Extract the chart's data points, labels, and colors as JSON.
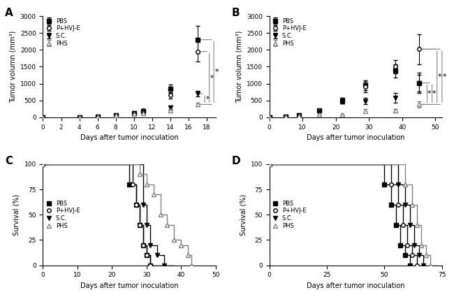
{
  "panel_A": {
    "title": "A",
    "xlabel": "Days after tumor inoculation",
    "ylabel": "Tumor volumn (mm³)",
    "xlim": [
      0,
      19
    ],
    "ylim": [
      0,
      3000
    ],
    "xticks": [
      0,
      2,
      4,
      6,
      8,
      10,
      12,
      14,
      16,
      18
    ],
    "yticks": [
      0,
      500,
      1000,
      1500,
      2000,
      2500,
      3000
    ],
    "series": {
      "PBS": {
        "x": [
          0,
          4,
          6,
          8,
          10,
          11,
          14,
          17
        ],
        "y": [
          0,
          5,
          8,
          50,
          120,
          190,
          850,
          2300
        ],
        "yerr": [
          0,
          2,
          3,
          10,
          30,
          40,
          120,
          400
        ],
        "marker": "s",
        "fillstyle": "full",
        "color": "black"
      },
      "P+HVJ-E": {
        "x": [
          0,
          4,
          6,
          8,
          10,
          11,
          14,
          17
        ],
        "y": [
          0,
          5,
          8,
          50,
          100,
          200,
          650,
          1950
        ],
        "yerr": [
          0,
          2,
          3,
          10,
          25,
          50,
          100,
          300
        ],
        "marker": "o",
        "fillstyle": "none",
        "color": "black"
      },
      "S.C.": {
        "x": [
          0,
          4,
          6,
          8,
          10,
          11,
          14,
          17
        ],
        "y": [
          0,
          5,
          8,
          50,
          110,
          160,
          280,
          700
        ],
        "yerr": [
          0,
          2,
          3,
          10,
          20,
          30,
          60,
          80
        ],
        "marker": "v",
        "fillstyle": "full",
        "color": "black"
      },
      "PHS": {
        "x": [
          0,
          4,
          6,
          8,
          10,
          11,
          14,
          17
        ],
        "y": [
          0,
          5,
          8,
          50,
          90,
          130,
          200,
          380
        ],
        "yerr": [
          0,
          2,
          3,
          10,
          15,
          25,
          40,
          60
        ],
        "marker": "^",
        "fillstyle": "none",
        "color": "gray"
      }
    }
  },
  "panel_B": {
    "title": "B",
    "xlabel": "Days after tumor inoculation",
    "ylabel": "Tumor volumn (mm³)",
    "xlim": [
      0,
      52
    ],
    "ylim": [
      0,
      3000
    ],
    "xticks": [
      0,
      10,
      20,
      30,
      40,
      50
    ],
    "yticks": [
      0,
      500,
      1000,
      1500,
      2000,
      2500,
      3000
    ],
    "series": {
      "PBS": {
        "x": [
          0,
          5,
          9,
          15,
          22,
          29,
          38,
          45
        ],
        "y": [
          0,
          10,
          60,
          200,
          500,
          950,
          1380,
          1020
        ],
        "yerr": [
          0,
          5,
          15,
          40,
          80,
          150,
          200,
          300
        ],
        "marker": "s",
        "fillstyle": "full",
        "color": "black"
      },
      "P+HVJ-E": {
        "x": [
          0,
          5,
          9,
          15,
          22,
          29,
          38,
          45
        ],
        "y": [
          0,
          10,
          60,
          200,
          500,
          900,
          1500,
          2020
        ],
        "yerr": [
          0,
          5,
          15,
          40,
          80,
          150,
          200,
          450
        ],
        "marker": "o",
        "fillstyle": "none",
        "color": "black"
      },
      "S.C.": {
        "x": [
          0,
          5,
          9,
          15,
          22,
          29,
          38,
          45
        ],
        "y": [
          0,
          10,
          55,
          170,
          480,
          480,
          580,
          1020
        ],
        "yerr": [
          0,
          5,
          12,
          35,
          70,
          100,
          150,
          250
        ],
        "marker": "v",
        "fillstyle": "full",
        "color": "black"
      },
      "PHS": {
        "x": [
          0,
          5,
          9,
          15,
          22,
          29,
          38,
          45
        ],
        "y": [
          0,
          10,
          30,
          70,
          80,
          190,
          200,
          380
        ],
        "yerr": [
          0,
          5,
          10,
          20,
          25,
          50,
          50,
          100
        ],
        "marker": "^",
        "fillstyle": "none",
        "color": "gray"
      }
    }
  },
  "panel_C": {
    "title": "C",
    "xlabel": "Days after tumor inoculation",
    "ylabel": "Survival (%)",
    "xlim": [
      0,
      50
    ],
    "ylim": [
      0,
      100
    ],
    "xticks": [
      0,
      10,
      20,
      30,
      40,
      50
    ],
    "yticks": [
      0,
      25,
      50,
      75,
      100
    ],
    "series": {
      "PBS": {
        "x": [
          0,
          22,
          25,
          27,
          28,
          29,
          30,
          31,
          32
        ],
        "y": [
          100,
          100,
          80,
          60,
          40,
          20,
          10,
          0,
          0
        ],
        "marker": "s",
        "fillstyle": "full",
        "color": "black"
      },
      "P+HVJ-E": {
        "x": [
          0,
          26,
          27,
          28,
          29,
          30,
          31,
          33,
          34
        ],
        "y": [
          100,
          80,
          60,
          40,
          20,
          10,
          0,
          0,
          0
        ],
        "marker": "o",
        "fillstyle": "none",
        "color": "black"
      },
      "S.C.": {
        "x": [
          0,
          27,
          29,
          30,
          31,
          33,
          35,
          37,
          38
        ],
        "y": [
          100,
          100,
          60,
          40,
          20,
          10,
          0,
          0,
          0
        ],
        "marker": "v",
        "fillstyle": "full",
        "color": "black"
      },
      "PHS": {
        "x": [
          0,
          28,
          30,
          32,
          34,
          36,
          38,
          40,
          42,
          43
        ],
        "y": [
          100,
          90,
          80,
          70,
          50,
          40,
          25,
          20,
          10,
          0
        ],
        "marker": "^",
        "fillstyle": "none",
        "color": "gray"
      }
    }
  },
  "panel_D": {
    "title": "D",
    "xlabel": "Days after tumor inoculation",
    "ylabel": "Survival (%)",
    "xlim": [
      0,
      75
    ],
    "ylim": [
      0,
      100
    ],
    "xticks": [
      0,
      25,
      50,
      75
    ],
    "yticks": [
      0,
      25,
      50,
      75,
      100
    ],
    "series": {
      "PBS": {
        "x": [
          0,
          47,
          50,
          53,
          55,
          57,
          59,
          61,
          62
        ],
        "y": [
          100,
          100,
          80,
          60,
          40,
          20,
          10,
          0,
          0
        ],
        "marker": "s",
        "fillstyle": "full",
        "color": "black"
      },
      "P+HVJ-E": {
        "x": [
          0,
          50,
          53,
          56,
          58,
          60,
          62,
          64,
          65
        ],
        "y": [
          100,
          100,
          80,
          60,
          40,
          20,
          10,
          0,
          0
        ],
        "marker": "o",
        "fillstyle": "none",
        "color": "black"
      },
      "S.C.": {
        "x": [
          0,
          53,
          56,
          59,
          61,
          63,
          65,
          67,
          68
        ],
        "y": [
          100,
          100,
          80,
          60,
          40,
          20,
          10,
          0,
          0
        ],
        "marker": "v",
        "fillstyle": "full",
        "color": "black"
      },
      "PHS": {
        "x": [
          0,
          56,
          59,
          62,
          64,
          66,
          68,
          70,
          72,
          73
        ],
        "y": [
          100,
          100,
          80,
          60,
          40,
          20,
          10,
          0,
          0,
          0
        ],
        "marker": "^",
        "fillstyle": "none",
        "color": "gray"
      }
    }
  }
}
